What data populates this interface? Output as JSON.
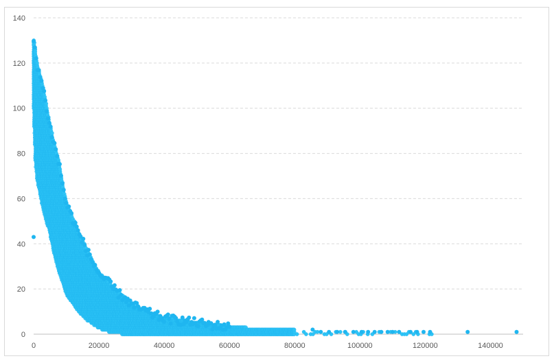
{
  "chart_data": {
    "type": "scatter",
    "title": "",
    "xlabel": "",
    "ylabel": "",
    "xlim": [
      0,
      150000
    ],
    "ylim": [
      0,
      140
    ],
    "x_ticks": [
      0,
      20000,
      40000,
      60000,
      80000,
      100000,
      120000,
      140000
    ],
    "y_ticks": [
      0,
      20,
      40,
      60,
      80,
      100,
      120,
      140
    ],
    "grid": {
      "horizontal": true,
      "style": "dashed"
    },
    "legend": "none",
    "colors": {
      "marker": "#1fb6f0",
      "marker_fill": "#2ec4f6",
      "grid": "#d9d9d9",
      "axis": "#bfbfbf"
    },
    "series": [
      {
        "description_values": "Dense monotonically decreasing scatter band. Representative boundary points sampled from the plot.",
        "upper_envelope": [
          [
            0,
            130
          ],
          [
            500,
            126
          ],
          [
            1000,
            120
          ],
          [
            2000,
            114
          ],
          [
            3000,
            108
          ],
          [
            4000,
            100
          ],
          [
            5000,
            92
          ],
          [
            6000,
            86
          ],
          [
            7000,
            80
          ],
          [
            8000,
            74
          ],
          [
            9000,
            65
          ],
          [
            10000,
            58
          ],
          [
            12000,
            51
          ],
          [
            14000,
            44
          ],
          [
            16000,
            38
          ],
          [
            18000,
            32
          ],
          [
            20000,
            27
          ],
          [
            22000,
            24
          ],
          [
            24000,
            21
          ],
          [
            26000,
            18
          ],
          [
            28000,
            16
          ],
          [
            30000,
            13
          ],
          [
            33000,
            11
          ],
          [
            36000,
            9
          ],
          [
            40000,
            7
          ],
          [
            45000,
            6
          ],
          [
            50000,
            5
          ],
          [
            55000,
            4
          ],
          [
            60000,
            3
          ],
          [
            70000,
            2
          ],
          [
            75000,
            2
          ],
          [
            80000,
            2
          ],
          [
            90000,
            1
          ],
          [
            100000,
            1
          ],
          [
            110000,
            1
          ],
          [
            120000,
            1
          ]
        ],
        "lower_envelope": [
          [
            0,
            100
          ],
          [
            500,
            78
          ],
          [
            1000,
            70
          ],
          [
            2000,
            62
          ],
          [
            3000,
            55
          ],
          [
            4000,
            50
          ],
          [
            5000,
            45
          ],
          [
            6000,
            38
          ],
          [
            7000,
            32
          ],
          [
            8000,
            27
          ],
          [
            9000,
            23
          ],
          [
            10000,
            18
          ],
          [
            12000,
            14
          ],
          [
            14000,
            10
          ],
          [
            16000,
            7
          ],
          [
            18000,
            5
          ],
          [
            20000,
            3
          ],
          [
            22000,
            2
          ],
          [
            24000,
            1
          ],
          [
            26000,
            1
          ],
          [
            28000,
            0
          ],
          [
            30000,
            0
          ],
          [
            40000,
            0
          ],
          [
            60000,
            0
          ],
          [
            80000,
            0
          ],
          [
            100000,
            0
          ],
          [
            120000,
            0
          ]
        ],
        "outliers": [
          [
            0,
            43
          ],
          [
            133000,
            1
          ],
          [
            148000,
            1
          ],
          [
            121500,
            1
          ],
          [
            119500,
            1
          ],
          [
            117500,
            1
          ],
          [
            115500,
            1
          ],
          [
            112000,
            1
          ],
          [
            110000,
            1
          ],
          [
            108500,
            1
          ],
          [
            106500,
            1
          ],
          [
            104500,
            1
          ],
          [
            102500,
            1
          ],
          [
            100500,
            1
          ],
          [
            98000,
            1
          ],
          [
            95500,
            1
          ],
          [
            93000,
            1
          ],
          [
            90500,
            1
          ],
          [
            88000,
            1
          ],
          [
            85500,
            2
          ]
        ]
      }
    ]
  }
}
